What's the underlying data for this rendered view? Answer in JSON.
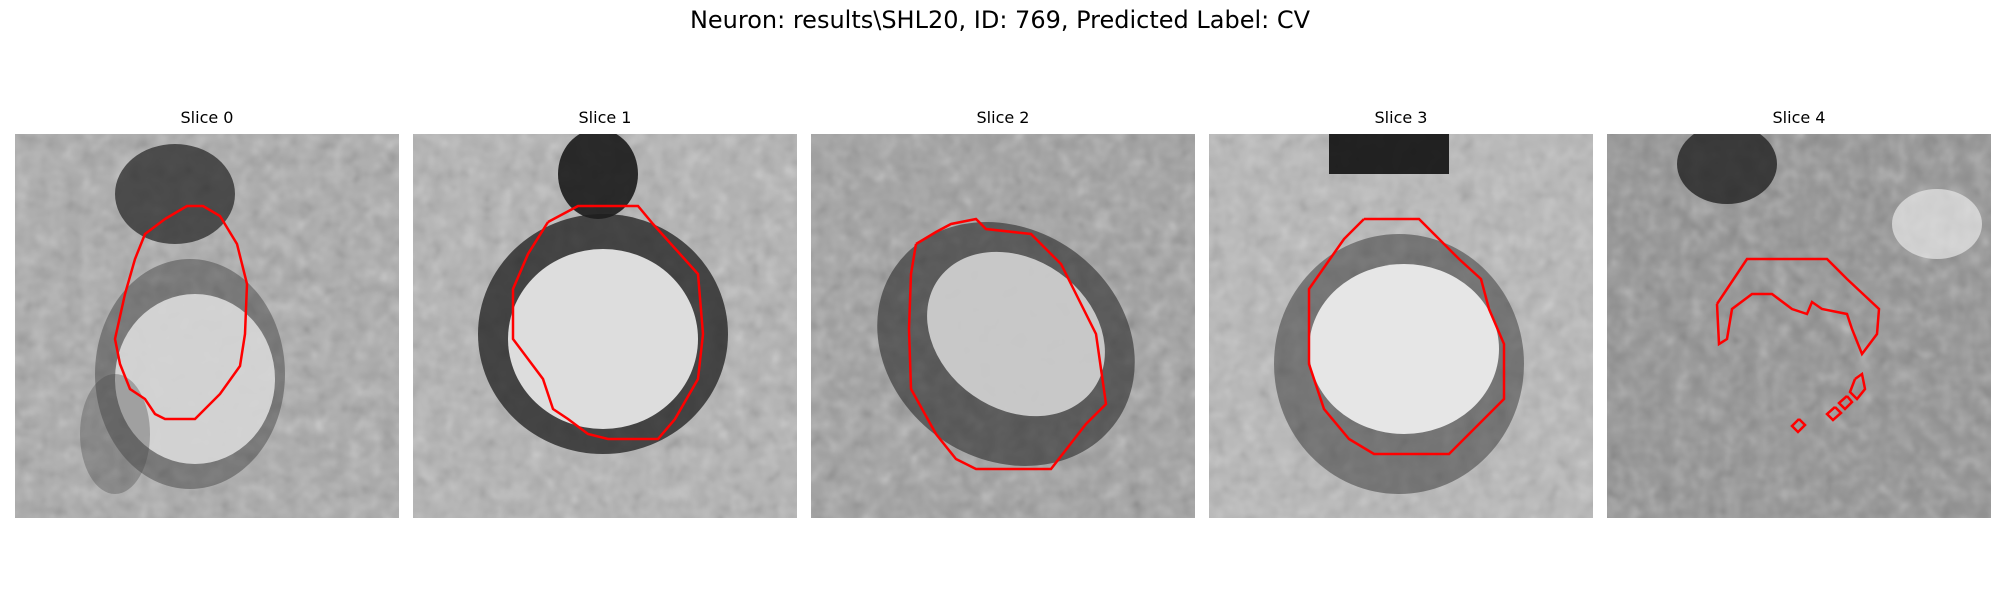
{
  "figure": {
    "title": "Neuron: results\\SHL20, ID: 769, Predicted Label: CV"
  },
  "panels": [
    {
      "title": "Slice 0"
    },
    {
      "title": "Slice 1"
    },
    {
      "title": "Slice 2"
    },
    {
      "title": "Slice 3"
    },
    {
      "title": "Slice 4"
    }
  ],
  "contour_color": "#ff0000"
}
